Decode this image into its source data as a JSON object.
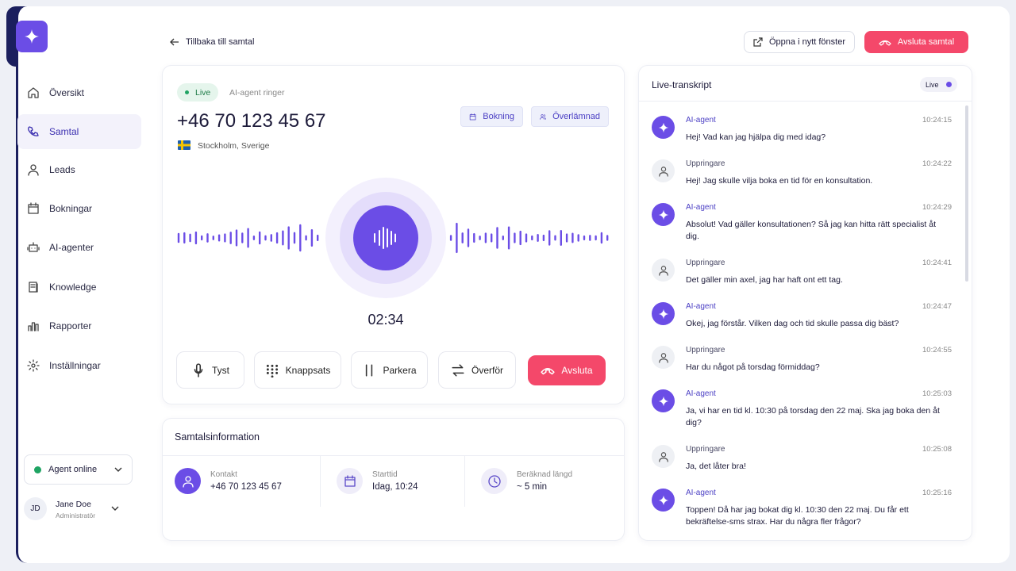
{
  "sidebar": {
    "nav": [
      "Översikt",
      "Samtal",
      "Leads",
      "Bokningar",
      "AI-agenter",
      "Knowledge",
      "Rapporter",
      "Inställningar"
    ],
    "status": "Agent online",
    "user": {
      "initials": "JD",
      "name": "Jane Doe",
      "role": "Administratör"
    }
  },
  "header": {
    "back": "Tillbaka till samtal",
    "open": "Öppna i nytt fönster",
    "end": "Avsluta samtal"
  },
  "call": {
    "status": "Live",
    "state": "AI-agent ringer",
    "number": "+46 70 123 45 67",
    "location": "Stockholm, Sverige",
    "tags": [
      "Bokning",
      "Överlämnad"
    ],
    "timer": "02:34",
    "controls": [
      "Tyst",
      "Knappsats",
      "Parkera",
      "Överför",
      "Avsluta"
    ]
  },
  "info": {
    "title": "Samtalsinformation",
    "fields": [
      {
        "label": "Kontakt",
        "value": "+46 70 123 45 67"
      },
      {
        "label": "Starttid",
        "value": "Idag, 10:24"
      },
      {
        "label": "Beräknad längd",
        "value": "~ 5 min"
      }
    ]
  },
  "transcript": {
    "title": "Live-transkript",
    "badge": "Live",
    "messages": [
      {
        "speaker": "AI-agent",
        "time": "10:24:15",
        "text": "Hej! Vad kan jag hjälpa dig med idag?"
      },
      {
        "speaker": "Uppringare",
        "time": "10:24:22",
        "text": "Hej! Jag skulle vilja boka en tid för en konsultation."
      },
      {
        "speaker": "AI-agent",
        "time": "10:24:29",
        "text": "Absolut! Vad gäller konsultationen? Så jag kan hitta rätt specialist åt dig."
      },
      {
        "speaker": "Uppringare",
        "time": "10:24:41",
        "text": "Det gäller min axel, jag har haft ont ett tag."
      },
      {
        "speaker": "AI-agent",
        "time": "10:24:47",
        "text": "Okej, jag förstår. Vilken dag och tid skulle passa dig bäst?"
      },
      {
        "speaker": "Uppringare",
        "time": "10:24:55",
        "text": "Har du något på torsdag förmiddag?"
      },
      {
        "speaker": "AI-agent",
        "time": "10:25:03",
        "text": "Ja, vi har en tid kl. 10:30 på torsdag den 22 maj. Ska jag boka den åt dig?"
      },
      {
        "speaker": "Uppringare",
        "time": "10:25:08",
        "text": "Ja, det låter bra!"
      },
      {
        "speaker": "AI-agent",
        "time": "10:25:16",
        "text": "Toppen! Då har jag bokat dig kl. 10:30 den 22 maj. Du får ett bekräftelse-sms strax. Har du några fler frågor?"
      }
    ]
  }
}
